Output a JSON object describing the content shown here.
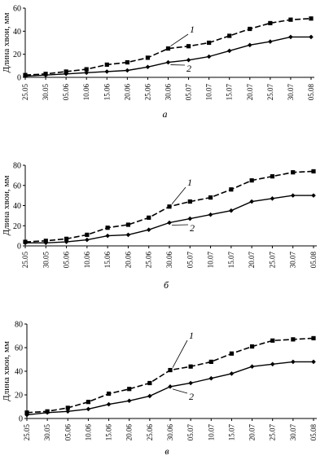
{
  "chart_data": [
    {
      "type": "line",
      "panel_label": "а",
      "ylabel": "Длина хвои, мм",
      "ylim": [
        0,
        60
      ],
      "yticks": [
        0,
        20,
        40,
        60
      ],
      "categories": [
        "25.05",
        "30.05",
        "05.06",
        "10.06",
        "15.06",
        "20.06",
        "25.06",
        "30.06",
        "05.07",
        "10.07",
        "15.07",
        "20.07",
        "25.07",
        "30.07",
        "05.08"
      ],
      "series": [
        {
          "name": "1",
          "marker": "square",
          "dash": true,
          "values": [
            2,
            3,
            5,
            7,
            11,
            13,
            17,
            25,
            27,
            30,
            36,
            42,
            47,
            50,
            51
          ]
        },
        {
          "name": "2",
          "marker": "diamond",
          "dash": false,
          "values": [
            1,
            2,
            3,
            4,
            5,
            6,
            9,
            13,
            15,
            18,
            23,
            28,
            31,
            35,
            35
          ]
        }
      ]
    },
    {
      "type": "line",
      "panel_label": "б",
      "ylabel": "Длина хвои, мм",
      "ylim": [
        0,
        80
      ],
      "yticks": [
        0,
        20,
        40,
        60,
        80
      ],
      "categories": [
        "25.05",
        "30.05",
        "05.06",
        "10.06",
        "15.06",
        "20.06",
        "25.06",
        "30.06",
        "05.07",
        "10.07",
        "15.07",
        "20.07",
        "25.07",
        "30.07",
        "05.08"
      ],
      "series": [
        {
          "name": "1",
          "marker": "square",
          "dash": true,
          "values": [
            4,
            5,
            7,
            11,
            18,
            21,
            28,
            39,
            44,
            48,
            56,
            65,
            69,
            73,
            74
          ]
        },
        {
          "name": "2",
          "marker": "diamond",
          "dash": false,
          "values": [
            3,
            3,
            4,
            6,
            10,
            11,
            16,
            23,
            27,
            31,
            35,
            44,
            47,
            50,
            50
          ]
        }
      ]
    },
    {
      "type": "line",
      "panel_label": "в",
      "ylabel": "Длина хвои, мм",
      "ylim": [
        0,
        80
      ],
      "yticks": [
        0,
        20,
        40,
        60,
        80
      ],
      "categories": [
        "25.05",
        "30.05",
        "05.06",
        "10.06",
        "15.06",
        "20.06",
        "25.06",
        "30.06",
        "05.07",
        "10.07",
        "15.07",
        "20.07",
        "25.07",
        "30.07",
        "05.08"
      ],
      "series": [
        {
          "name": "1",
          "marker": "square",
          "dash": true,
          "values": [
            5,
            6,
            9,
            14,
            21,
            25,
            30,
            41,
            44,
            48,
            55,
            61,
            66,
            67,
            68
          ]
        },
        {
          "name": "2",
          "marker": "diamond",
          "dash": false,
          "values": [
            3,
            5,
            6,
            8,
            12,
            15,
            19,
            27,
            30,
            34,
            38,
            44,
            46,
            48,
            48
          ]
        }
      ]
    }
  ]
}
